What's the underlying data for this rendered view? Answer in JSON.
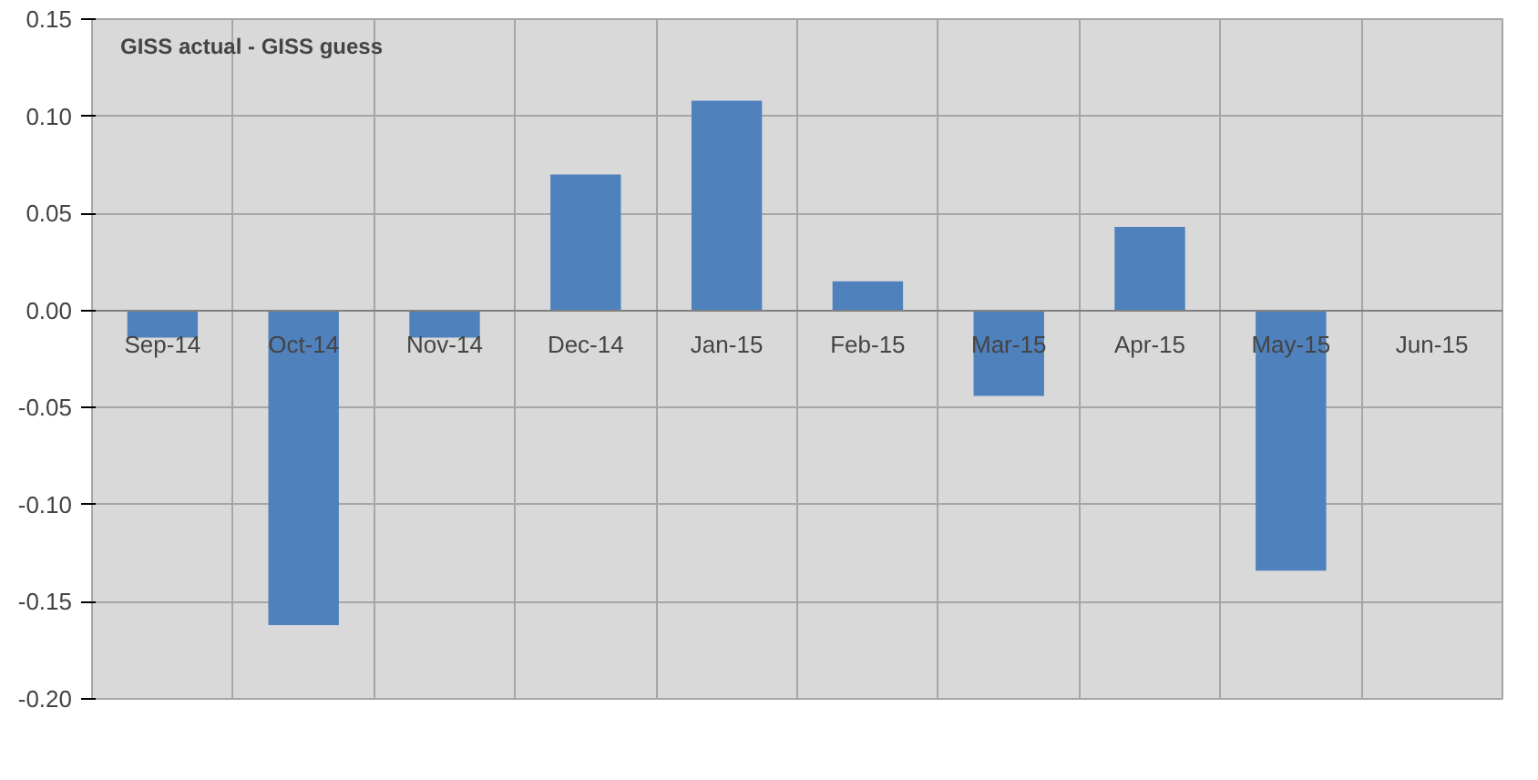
{
  "chart_data": {
    "type": "bar",
    "title": "GISS actual - GISS guess",
    "categories": [
      "Sep-14",
      "Oct-14",
      "Nov-14",
      "Dec-14",
      "Jan-15",
      "Feb-15",
      "Mar-15",
      "Apr-15",
      "May-15",
      "Jun-15"
    ],
    "values": [
      -0.014,
      -0.162,
      -0.014,
      0.07,
      0.108,
      0.015,
      -0.044,
      0.043,
      -0.134,
      null
    ],
    "color": "#4f81bd",
    "ylim": [
      -0.2,
      0.15
    ],
    "yticks": [
      {
        "value": -0.2,
        "label": "-0.20"
      },
      {
        "value": -0.15,
        "label": "-0.15"
      },
      {
        "value": -0.1,
        "label": "-0.10"
      },
      {
        "value": -0.05,
        "label": "-0.05"
      },
      {
        "value": 0,
        "label": "0.00"
      },
      {
        "value": 0.05,
        "label": "0.05"
      },
      {
        "value": 0.1,
        "label": "0.10"
      },
      {
        "value": 0.15,
        "label": "0.15"
      }
    ],
    "grid": true
  }
}
